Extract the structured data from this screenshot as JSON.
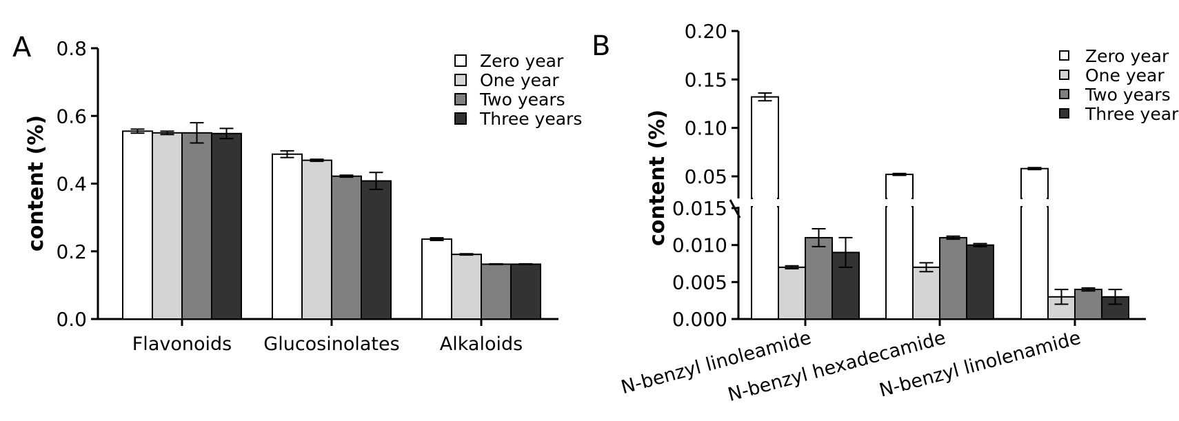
{
  "colors": {
    "Zero year": "#ffffff",
    "One year": "#d4d4d4",
    "Two years": "#808080",
    "Three years": "#333333"
  },
  "chart_data": [
    {
      "panel": "A",
      "type": "bar",
      "ylabel": "content (%)",
      "ylim": [
        0,
        0.8
      ],
      "yticks": [
        "0.0",
        "0.2",
        "0.4",
        "0.6",
        "0.8"
      ],
      "categories": [
        "Flavonoids",
        "Glucosinolates",
        "Alkaloids"
      ],
      "legend_position": "top-right",
      "series": [
        {
          "name": "Zero year",
          "values": [
            0.555,
            0.487,
            0.236
          ],
          "errors": [
            0.006,
            0.01,
            0.004
          ]
        },
        {
          "name": "One year",
          "values": [
            0.55,
            0.469,
            0.191
          ],
          "errors": [
            0.005,
            0.003,
            0.002
          ]
        },
        {
          "name": "Two years",
          "values": [
            0.55,
            0.422,
            0.162
          ],
          "errors": [
            0.03,
            0.003,
            0.001
          ]
        },
        {
          "name": "Three years",
          "values": [
            0.548,
            0.408,
            0.162
          ],
          "errors": [
            0.015,
            0.025,
            0.001
          ]
        }
      ]
    },
    {
      "panel": "B",
      "type": "bar",
      "ylabel": "content (%)",
      "y_axis_break": true,
      "ylim_lower": [
        0,
        0.015
      ],
      "ylim_upper": [
        0.04,
        0.2
      ],
      "yticks_lower": [
        "0.000",
        "0.005",
        "0.010",
        "0.015"
      ],
      "yticks_upper": [
        "0.05",
        "0.10",
        "0.15",
        "0.20"
      ],
      "categories": [
        "N-benzyl linoleamide",
        "N-benzyl hexadecamide",
        "N-benzyl linolenamide"
      ],
      "legend_position": "top-right",
      "series": [
        {
          "name": "Zero year",
          "values": [
            0.132,
            0.052,
            0.058
          ],
          "errors": [
            0.004,
            0.001,
            0.001
          ]
        },
        {
          "name": "One year",
          "values": [
            0.007,
            0.007,
            0.003
          ],
          "errors": [
            0.0002,
            0.0006,
            0.001
          ]
        },
        {
          "name": "Two years",
          "values": [
            0.011,
            0.011,
            0.004
          ],
          "errors": [
            0.0012,
            0.0002,
            0.0002
          ]
        },
        {
          "name": "Three years",
          "values": [
            0.009,
            0.01,
            0.003
          ],
          "errors": [
            0.002,
            0.0002,
            0.001
          ]
        }
      ]
    }
  ]
}
